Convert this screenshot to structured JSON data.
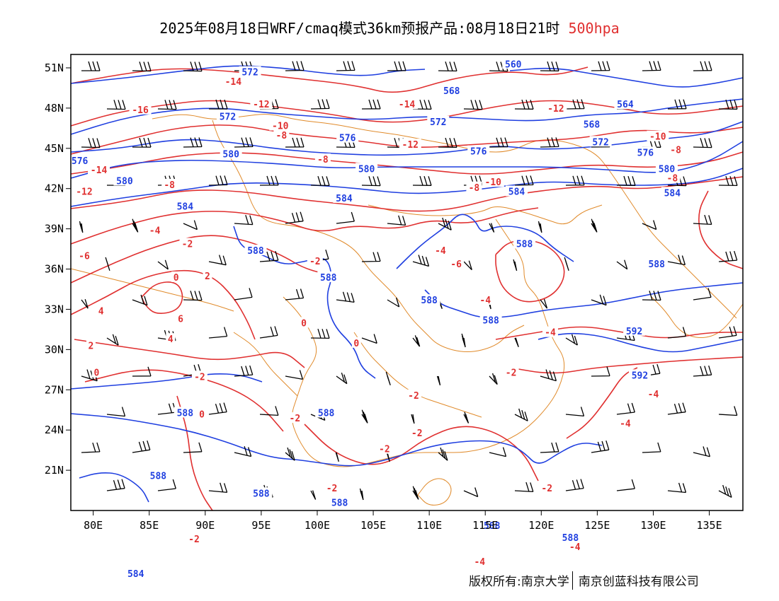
{
  "title": {
    "main": "2025年08月18日WRF/cmaq模式36km预报产品:08月18日21时",
    "level": "500hpa",
    "level_color": "#e03030"
  },
  "axes": {
    "lat_labels": [
      "51N",
      "48N",
      "45N",
      "42N",
      "39N",
      "36N",
      "33N",
      "30N",
      "27N",
      "24N",
      "21N"
    ],
    "lon_labels": [
      "80E",
      "85E",
      "90E",
      "95E",
      "100E",
      "105E",
      "110E",
      "115E",
      "120E",
      "125E",
      "130E",
      "135E"
    ]
  },
  "colors": {
    "height_contour": "#1f3fe0",
    "temperature_contour": "#e03030",
    "boundary": "#e08a2a",
    "wind_barb": "#000000"
  },
  "copyright": {
    "left": "版权所有:南京大学",
    "right": "南京创蓝科技有限公司"
  },
  "chart_data": {
    "type": "map",
    "lon_range": [
      78,
      138
    ],
    "lat_range": [
      18,
      52
    ],
    "height_contour_labels": [
      {
        "lon": 94.0,
        "lat": 50.7,
        "text": "572"
      },
      {
        "lon": 117.5,
        "lat": 51.3,
        "text": "560"
      },
      {
        "lon": 112.0,
        "lat": 49.3,
        "text": "568"
      },
      {
        "lon": 92.0,
        "lat": 47.4,
        "text": "572"
      },
      {
        "lon": 110.8,
        "lat": 47.0,
        "text": "572"
      },
      {
        "lon": 127.5,
        "lat": 48.3,
        "text": "564"
      },
      {
        "lon": 124.5,
        "lat": 46.8,
        "text": "568"
      },
      {
        "lon": 102.7,
        "lat": 45.8,
        "text": "576"
      },
      {
        "lon": 114.4,
        "lat": 44.8,
        "text": "576"
      },
      {
        "lon": 125.3,
        "lat": 45.5,
        "text": "572"
      },
      {
        "lon": 129.3,
        "lat": 44.7,
        "text": "576"
      },
      {
        "lon": 92.3,
        "lat": 44.6,
        "text": "580"
      },
      {
        "lon": 78.8,
        "lat": 44.1,
        "text": "576"
      },
      {
        "lon": 82.8,
        "lat": 42.6,
        "text": "580"
      },
      {
        "lon": 104.4,
        "lat": 43.5,
        "text": "580"
      },
      {
        "lon": 131.2,
        "lat": 43.5,
        "text": "580"
      },
      {
        "lon": 102.4,
        "lat": 41.3,
        "text": "584"
      },
      {
        "lon": 117.8,
        "lat": 41.8,
        "text": "584"
      },
      {
        "lon": 131.7,
        "lat": 41.7,
        "text": "584"
      },
      {
        "lon": 88.2,
        "lat": 40.7,
        "text": "584"
      },
      {
        "lon": 94.5,
        "lat": 37.4,
        "text": "588"
      },
      {
        "lon": 101.0,
        "lat": 35.4,
        "text": "588"
      },
      {
        "lon": 118.5,
        "lat": 37.9,
        "text": "588"
      },
      {
        "lon": 130.3,
        "lat": 36.4,
        "text": "588"
      },
      {
        "lon": 110.0,
        "lat": 33.7,
        "text": "588"
      },
      {
        "lon": 115.5,
        "lat": 32.2,
        "text": "588"
      },
      {
        "lon": 128.3,
        "lat": 31.4,
        "text": "592"
      },
      {
        "lon": 128.8,
        "lat": 28.1,
        "text": "592"
      },
      {
        "lon": 88.2,
        "lat": 25.3,
        "text": "588"
      },
      {
        "lon": 100.8,
        "lat": 25.3,
        "text": "588"
      },
      {
        "lon": 85.8,
        "lat": 20.6,
        "text": "588"
      },
      {
        "lon": 95.0,
        "lat": 19.3,
        "text": "588"
      },
      {
        "lon": 102.0,
        "lat": 18.6,
        "text": "588"
      },
      {
        "lon": 115.6,
        "lat": 16.9,
        "text": "588"
      },
      {
        "lon": 122.6,
        "lat": 16.0,
        "text": "588"
      },
      {
        "lon": 83.8,
        "lat": 13.3,
        "text": "584"
      }
    ],
    "temperature_contour_labels": [
      {
        "lon": 92.5,
        "lat": 50.0,
        "text": "-14"
      },
      {
        "lon": 108.0,
        "lat": 48.3,
        "text": "-14"
      },
      {
        "lon": 84.2,
        "lat": 47.9,
        "text": "-16"
      },
      {
        "lon": 95.0,
        "lat": 48.3,
        "text": "-12"
      },
      {
        "lon": 121.3,
        "lat": 48.0,
        "text": "-12"
      },
      {
        "lon": 96.7,
        "lat": 46.7,
        "text": "-10"
      },
      {
        "lon": 96.8,
        "lat": 46.0,
        "text": "-8"
      },
      {
        "lon": 108.3,
        "lat": 45.3,
        "text": "-12"
      },
      {
        "lon": 130.4,
        "lat": 45.9,
        "text": "-10"
      },
      {
        "lon": 132.0,
        "lat": 44.9,
        "text": "-8"
      },
      {
        "lon": 100.5,
        "lat": 44.2,
        "text": "-8"
      },
      {
        "lon": 80.5,
        "lat": 43.4,
        "text": "-14"
      },
      {
        "lon": 115.7,
        "lat": 42.5,
        "text": "-10"
      },
      {
        "lon": 131.7,
        "lat": 42.8,
        "text": "-8"
      },
      {
        "lon": 86.8,
        "lat": 42.3,
        "text": "-8"
      },
      {
        "lon": 114.0,
        "lat": 42.1,
        "text": "-8"
      },
      {
        "lon": 79.2,
        "lat": 41.8,
        "text": "-12"
      },
      {
        "lon": 85.5,
        "lat": 38.9,
        "text": "-4"
      },
      {
        "lon": 88.4,
        "lat": 37.9,
        "text": "-2"
      },
      {
        "lon": 111.0,
        "lat": 37.4,
        "text": "-4"
      },
      {
        "lon": 79.2,
        "lat": 37.0,
        "text": "-6"
      },
      {
        "lon": 99.8,
        "lat": 36.6,
        "text": "-2"
      },
      {
        "lon": 112.4,
        "lat": 36.4,
        "text": "-6"
      },
      {
        "lon": 87.4,
        "lat": 35.4,
        "text": "0"
      },
      {
        "lon": 90.2,
        "lat": 35.5,
        "text": "2"
      },
      {
        "lon": 80.7,
        "lat": 32.9,
        "text": "4"
      },
      {
        "lon": 87.8,
        "lat": 32.3,
        "text": "6"
      },
      {
        "lon": 86.9,
        "lat": 30.8,
        "text": "4"
      },
      {
        "lon": 98.8,
        "lat": 32.0,
        "text": "0"
      },
      {
        "lon": 103.5,
        "lat": 30.5,
        "text": "0"
      },
      {
        "lon": 115.0,
        "lat": 33.7,
        "text": "-4"
      },
      {
        "lon": 120.8,
        "lat": 31.3,
        "text": "-4"
      },
      {
        "lon": 79.8,
        "lat": 30.3,
        "text": "2"
      },
      {
        "lon": 80.3,
        "lat": 28.3,
        "text": "0"
      },
      {
        "lon": 89.5,
        "lat": 28.0,
        "text": "-2"
      },
      {
        "lon": 117.3,
        "lat": 28.3,
        "text": "-2"
      },
      {
        "lon": 130.0,
        "lat": 26.7,
        "text": "-4"
      },
      {
        "lon": 108.6,
        "lat": 26.6,
        "text": "-2"
      },
      {
        "lon": 89.7,
        "lat": 25.2,
        "text": "0"
      },
      {
        "lon": 98.0,
        "lat": 24.9,
        "text": "-2"
      },
      {
        "lon": 127.5,
        "lat": 24.5,
        "text": "-4"
      },
      {
        "lon": 108.9,
        "lat": 23.8,
        "text": "-2"
      },
      {
        "lon": 106.0,
        "lat": 22.6,
        "text": "-2"
      },
      {
        "lon": 101.3,
        "lat": 19.7,
        "text": "-2"
      },
      {
        "lon": 120.5,
        "lat": 19.7,
        "text": "-2"
      },
      {
        "lon": 89.0,
        "lat": 15.9,
        "text": "-2"
      },
      {
        "lon": 123.0,
        "lat": 15.3,
        "text": "-4"
      },
      {
        "lon": 114.5,
        "lat": 14.2,
        "text": "-4"
      }
    ]
  }
}
